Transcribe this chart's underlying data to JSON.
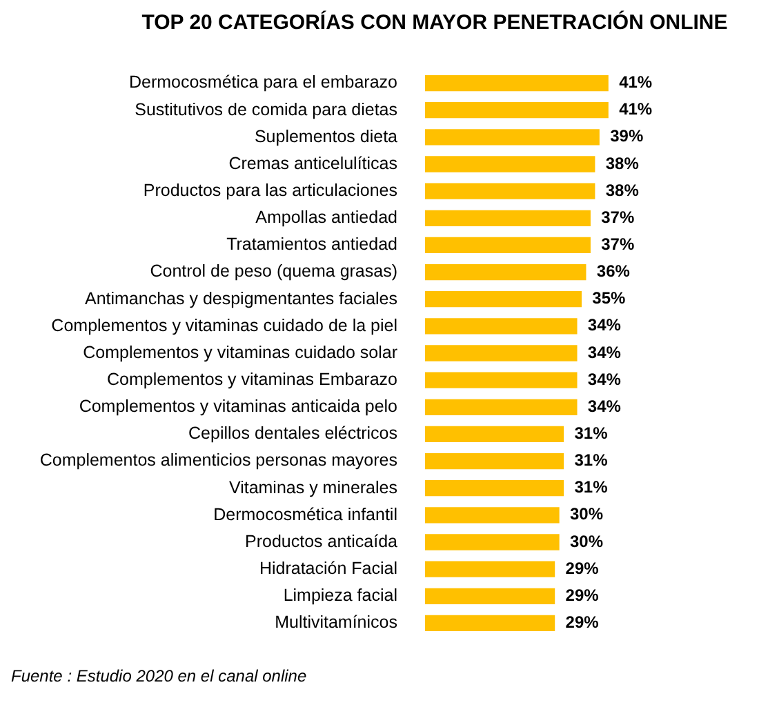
{
  "chart_data": {
    "type": "bar",
    "orientation": "horizontal",
    "title": "TOP 20 CATEGORÍAS CON MAYOR PENETRACIÓN ONLINE",
    "categories": [
      "Dermocosmética para el embarazo",
      "Sustitutivos de comida para dietas",
      "Suplementos dieta",
      "Cremas anticelulíticas",
      "Productos para las articulaciones",
      "Ampollas antiedad",
      "Tratamientos antiedad",
      "Control de peso (quema grasas)",
      "Antimanchas y despigmentantes faciales",
      "Complementos y vitaminas cuidado de la piel",
      "Complementos y vitaminas cuidado solar",
      "Complementos y vitaminas Embarazo",
      "Complementos y vitaminas anticaida pelo",
      "Cepillos dentales eléctricos",
      "Complementos alimenticios personas mayores",
      "Vitaminas y minerales",
      "Dermocosmética infantil",
      "Productos anticaída",
      "Hidratación Facial",
      "Limpieza facial",
      "Multivitamínicos"
    ],
    "values": [
      41,
      41,
      39,
      38,
      38,
      37,
      37,
      36,
      35,
      34,
      34,
      34,
      34,
      31,
      31,
      31,
      30,
      30,
      29,
      29,
      29
    ],
    "value_labels": [
      "41%",
      "41%",
      "39%",
      "38%",
      "38%",
      "37%",
      "37%",
      "36%",
      "35%",
      "34%",
      "34%",
      "34%",
      "34%",
      "31%",
      "31%",
      "31%",
      "30%",
      "30%",
      "29%",
      "29%",
      "29%"
    ],
    "color": "#ffc000",
    "annotations": [
      "Fuente : Estudio 2020 en el canal online"
    ]
  }
}
